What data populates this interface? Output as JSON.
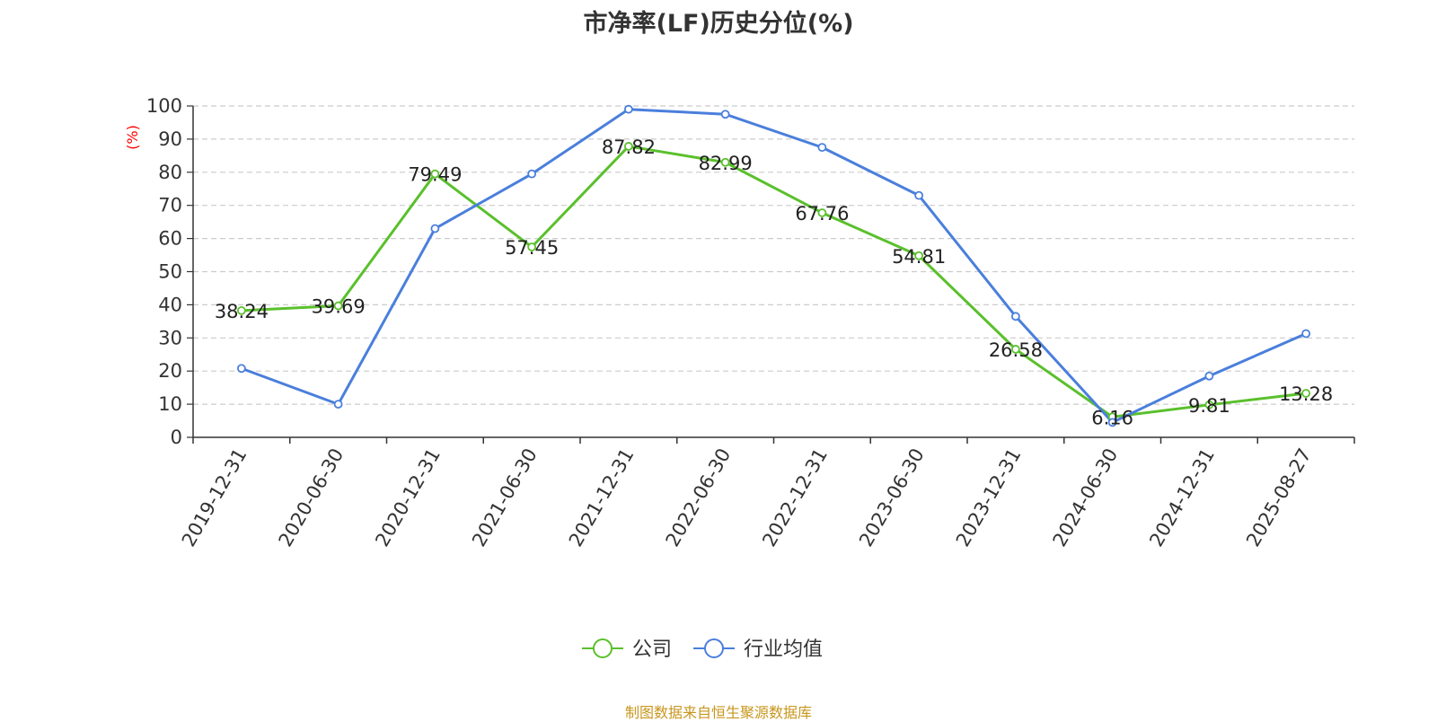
{
  "chart_data": {
    "type": "line",
    "title": "市净率(LF)历史分位(%)",
    "ylabel": "(%)",
    "ylim": [
      0,
      100
    ],
    "yticks": [
      0,
      10,
      20,
      30,
      40,
      50,
      60,
      70,
      80,
      90,
      100
    ],
    "grid": true,
    "legend_position": "bottom-center",
    "categories": [
      "2019-12-31",
      "2020-06-30",
      "2020-12-31",
      "2021-06-30",
      "2021-12-31",
      "2022-06-30",
      "2022-12-31",
      "2023-06-30",
      "2023-12-31",
      "2024-06-30",
      "2024-12-31",
      "2025-08-27"
    ],
    "series": [
      {
        "name": "公司",
        "color": "#5ac02c",
        "values": [
          38.24,
          39.69,
          79.49,
          57.45,
          87.82,
          82.99,
          67.76,
          54.81,
          26.58,
          6.16,
          9.81,
          13.28
        ],
        "labels": [
          "38.24",
          "39.69",
          "79.49",
          "57.45",
          "87.82",
          "82.99",
          "67.76",
          "54.81",
          "26.58",
          "6.16",
          "9.81",
          "13.28"
        ]
      },
      {
        "name": "行业均值",
        "color": "#4a7fdc",
        "values": [
          20.8,
          10.0,
          63.0,
          79.5,
          99.0,
          97.5,
          87.5,
          73.0,
          36.5,
          4.5,
          18.5,
          31.3
        ]
      }
    ]
  },
  "footer": {
    "source": "制图数据来自恒生聚源数据库",
    "source_color": "#c8961e"
  }
}
